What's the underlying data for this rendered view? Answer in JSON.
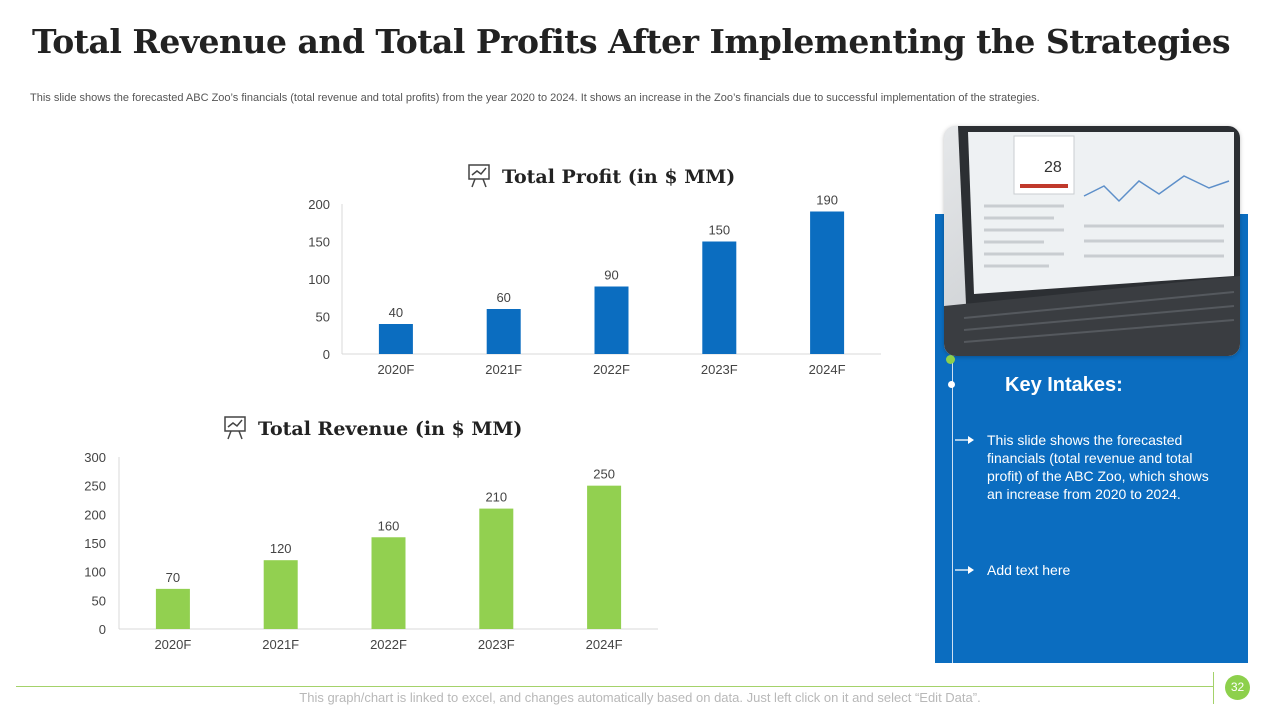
{
  "slide": {
    "title": "Total Revenue and Total Profits After Implementing the Strategies",
    "subtitle": "This slide shows the forecasted ABC Zoo’s financials (total revenue and total profits) from the year 2020 to 2024. It shows an increase in the Zoo’s financials due to successful implementation of the strategies.",
    "footer_note": "This graph/chart is linked to excel, and changes automatically based on data. Just left click on it and select “Edit Data”.",
    "page_number": "32"
  },
  "chart_data": [
    {
      "type": "bar",
      "title": "Total Profit (in $ MM)",
      "categories": [
        "2020F",
        "2021F",
        "2022F",
        "2023F",
        "2024F"
      ],
      "values": [
        40,
        60,
        90,
        150,
        190
      ],
      "yticks": [
        0,
        50,
        100,
        150,
        200
      ],
      "ylim": [
        0,
        200
      ],
      "color": "#0b6dc0",
      "xlabel": "",
      "ylabel": "",
      "grid": false
    },
    {
      "type": "bar",
      "title": "Total Revenue (in $ MM)",
      "categories": [
        "2020F",
        "2021F",
        "2022F",
        "2023F",
        "2024F"
      ],
      "values": [
        70,
        120,
        160,
        210,
        250
      ],
      "yticks": [
        0,
        50,
        100,
        150,
        200,
        250,
        300
      ],
      "ylim": [
        0,
        300
      ],
      "color": "#92d050",
      "xlabel": "",
      "ylabel": "",
      "grid": false
    }
  ],
  "side_panel": {
    "heading": "Key Intakes:",
    "bullets": [
      "This slide shows the forecasted financials (total revenue and total profit) of the ABC Zoo, which shows an increase from 2020 to 2024.",
      "Add text here"
    ],
    "image_screen_number": "28"
  },
  "colors": {
    "profit": "#0b6dc0",
    "revenue": "#92d050",
    "panel": "#0b6dc0",
    "accent": "#8dd04c"
  }
}
